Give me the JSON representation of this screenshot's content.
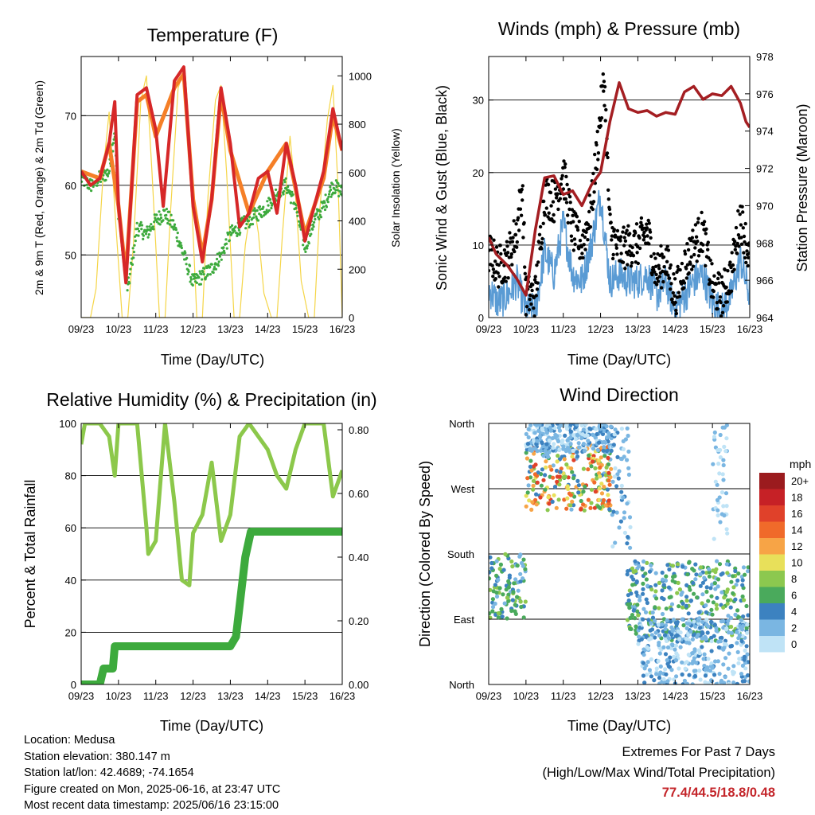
{
  "charts": {
    "temperature": {
      "title": "Temperature (F)",
      "xlabel": "Time (Day/UTC)",
      "ylabel_left": "2m & 9m T (Red, Orange) & 2m Td (Green)",
      "ylabel_right": "Solar Insolation (Yellow)"
    },
    "winds": {
      "title": "Winds (mph) & Pressure (mb)",
      "xlabel": "Time (Day/UTC)",
      "ylabel_left": "Sonic Wind & Gust (Blue, Black)",
      "ylabel_right": "Station Pressure (Maroon)"
    },
    "humidity": {
      "title": "Relative Humidity (%) & Precipitation (in)",
      "xlabel": "Time (Day/UTC)",
      "ylabel_left": "Percent & Total Rainfall"
    },
    "direction": {
      "title": "Wind Direction",
      "xlabel": "Time (Day/UTC)",
      "ylabel_left": "Direction (Colored By Speed)",
      "legend_title": "mph",
      "legend_labels": [
        "20+",
        "18",
        "16",
        "14",
        "12",
        "10",
        "8",
        "6",
        "4",
        "2",
        "0"
      ],
      "legend_colors": [
        "#9b1b1e",
        "#c62126",
        "#e0412a",
        "#f06a2a",
        "#f7a446",
        "#e8e05a",
        "#8cc84f",
        "#4aaa5c",
        "#3c82c0",
        "#7ab6e2",
        "#bfe3f6"
      ]
    }
  },
  "chart_data": [
    {
      "type": "line",
      "title": "Temperature (F)",
      "xlabel": "Time (Day/UTC)",
      "ylabel": "2m & 9m T (Red, Orange) & 2m Td (Green)",
      "y2label": "Solar Insolation (Yellow)",
      "xticks": [
        "09/23",
        "10/23",
        "11/23",
        "12/23",
        "13/23",
        "14/23",
        "15/23",
        "16/23"
      ],
      "xlim": [
        0,
        7
      ],
      "ylim": [
        41,
        78.5
      ],
      "yticks": [
        50,
        60,
        70
      ],
      "y2lim": [
        0,
        1080
      ],
      "y2ticks": [
        0,
        200,
        400,
        600,
        800,
        1000
      ],
      "grid": true,
      "series": [
        {
          "name": "2m T",
          "color": "#d62728",
          "axis": "left",
          "x": [
            0,
            0.25,
            0.5,
            0.75,
            0.9,
            1.0,
            1.2,
            1.5,
            1.75,
            2.0,
            2.2,
            2.5,
            2.75,
            3.0,
            3.25,
            3.5,
            3.75,
            4.0,
            4.25,
            4.5,
            4.75,
            5.0,
            5.25,
            5.5,
            5.75,
            6.0,
            6.25,
            6.5,
            6.75,
            7.0
          ],
          "y": [
            62,
            60,
            61,
            66,
            72,
            57,
            46,
            73,
            74,
            68,
            57,
            75,
            77,
            57,
            49,
            58,
            74,
            66,
            54,
            56,
            61,
            62,
            56,
            66,
            60,
            52,
            57,
            62,
            71,
            65
          ]
        },
        {
          "name": "9m T",
          "color": "#f57f27",
          "axis": "left",
          "x": [
            0,
            0.5,
            0.75,
            1.0,
            1.2,
            1.5,
            1.75,
            2.0,
            2.5,
            2.75,
            3.0,
            3.25,
            3.5,
            3.75,
            4.0,
            4.5,
            5.0,
            5.5,
            6.0,
            6.5,
            6.75,
            7.0
          ],
          "y": [
            62,
            61,
            66,
            57,
            47,
            72,
            73,
            67,
            74,
            76,
            58,
            50,
            58,
            73,
            65,
            56,
            62,
            66,
            53,
            61,
            70,
            65
          ]
        },
        {
          "name": "2m Td",
          "color": "#3daa3d",
          "axis": "left",
          "x": [
            0,
            0.25,
            0.5,
            0.75,
            0.9,
            1.0,
            1.25,
            1.5,
            1.75,
            2.0,
            2.25,
            2.5,
            2.75,
            3.0,
            3.25,
            3.5,
            3.75,
            4.0,
            4.25,
            4.5,
            4.75,
            5.0,
            5.25,
            5.5,
            5.75,
            6.0,
            6.25,
            6.5,
            6.75,
            7.0
          ],
          "y": [
            61,
            60,
            61,
            62,
            68,
            56,
            45,
            54,
            53,
            55,
            56,
            54,
            50,
            46,
            47,
            48,
            50,
            53,
            54,
            55,
            56,
            57,
            59,
            60,
            57,
            51,
            55,
            57,
            60,
            59
          ]
        },
        {
          "name": "Solar Insolation",
          "color": "#f5d547",
          "axis": "right",
          "x": [
            0.0,
            0.25,
            0.4,
            0.6,
            0.75,
            0.9,
            1.1,
            1.25,
            1.4,
            1.6,
            1.75,
            1.9,
            2.1,
            2.25,
            2.4,
            2.6,
            2.75,
            2.9,
            3.1,
            3.25,
            3.4,
            3.6,
            3.75,
            3.9,
            4.1,
            4.25,
            4.4,
            4.6,
            4.75,
            4.9,
            5.1,
            5.25,
            5.4,
            5.6,
            5.75,
            5.9,
            6.1,
            6.25,
            6.4,
            6.6,
            6.75,
            6.9,
            7.0
          ],
          "y": [
            0,
            0,
            120,
            620,
            850,
            450,
            0,
            0,
            300,
            900,
            1000,
            600,
            0,
            0,
            450,
            950,
            1020,
            700,
            0,
            0,
            500,
            900,
            960,
            600,
            0,
            0,
            300,
            500,
            350,
            100,
            0,
            0,
            350,
            750,
            500,
            150,
            0,
            0,
            450,
            820,
            960,
            500,
            0
          ]
        }
      ]
    },
    {
      "type": "line",
      "title": "Winds (mph) & Pressure (mb)",
      "xlabel": "Time (Day/UTC)",
      "ylabel": "Sonic Wind & Gust (Blue, Black)",
      "y2label": "Station Pressure (Maroon)",
      "xticks": [
        "09/23",
        "10/23",
        "11/23",
        "12/23",
        "13/23",
        "14/23",
        "15/23",
        "16/23"
      ],
      "xlim": [
        0,
        7
      ],
      "ylim": [
        0,
        36
      ],
      "yticks": [
        0,
        10,
        20,
        30
      ],
      "y2lim": [
        964,
        978
      ],
      "y2ticks": [
        964,
        966,
        968,
        970,
        972,
        974,
        976,
        978
      ],
      "grid": true,
      "series": [
        {
          "name": "Sonic Wind",
          "color": "#5a9bd4",
          "axis": "left",
          "x": [
            0,
            0.25,
            0.5,
            0.75,
            1.0,
            1.25,
            1.5,
            1.75,
            2.0,
            2.25,
            2.5,
            2.75,
            3.0,
            3.25,
            3.5,
            3.75,
            4.0,
            4.25,
            4.5,
            4.75,
            5.0,
            5.25,
            5.5,
            5.75,
            6.0,
            6.25,
            6.5,
            6.75,
            7.0
          ],
          "y": [
            4,
            2,
            3,
            5,
            1,
            1,
            9,
            6,
            13,
            6,
            5,
            10,
            17,
            5,
            6,
            5,
            5,
            6,
            3,
            5,
            1,
            3,
            5,
            6,
            2,
            1,
            3,
            8,
            3
          ]
        },
        {
          "name": "Gust",
          "color": "#000000",
          "axis": "left",
          "x": [
            0,
            0.25,
            0.5,
            0.75,
            0.9,
            1.0,
            1.25,
            1.5,
            1.75,
            2.0,
            2.25,
            2.5,
            2.75,
            3.0,
            3.1,
            3.25,
            3.5,
            3.75,
            4.0,
            4.25,
            4.5,
            4.75,
            5.0,
            5.25,
            5.5,
            5.75,
            6.0,
            6.25,
            6.5,
            6.75,
            7.0
          ],
          "y": [
            9,
            7,
            8,
            12,
            18,
            3,
            3,
            17,
            16,
            20,
            12,
            10,
            15,
            28,
            33,
            12,
            9,
            10,
            10,
            12,
            6,
            8,
            3,
            7,
            10,
            12,
            4,
            3,
            6,
            14,
            8
          ]
        },
        {
          "name": "Station Pressure",
          "color": "#a41e22",
          "axis": "right",
          "x": [
            0,
            0.2,
            0.5,
            0.75,
            1.0,
            1.25,
            1.5,
            1.75,
            2.0,
            2.25,
            2.5,
            2.75,
            3.0,
            3.25,
            3.5,
            3.75,
            4.0,
            4.25,
            4.5,
            4.75,
            5.0,
            5.25,
            5.5,
            5.75,
            6.0,
            6.25,
            6.5,
            6.75,
            6.9,
            7.0
          ],
          "y": [
            968.3,
            967.4,
            966.8,
            966.1,
            965.2,
            968.7,
            971.5,
            971.6,
            970.6,
            970.8,
            970.0,
            971.1,
            971.8,
            974.5,
            976.6,
            975.2,
            975.0,
            975.1,
            974.8,
            975.0,
            974.9,
            976.1,
            976.4,
            975.7,
            976.0,
            975.9,
            976.4,
            975.5,
            974.5,
            974.2
          ]
        }
      ]
    },
    {
      "type": "line",
      "title": "Relative Humidity (%) & Precipitation (in)",
      "xlabel": "Time (Day/UTC)",
      "ylabel": "Percent & Total Rainfall",
      "xticks": [
        "09/23",
        "10/23",
        "11/23",
        "12/23",
        "13/23",
        "14/23",
        "15/23",
        "16/23"
      ],
      "xlim": [
        0,
        7
      ],
      "ylim": [
        0,
        100
      ],
      "yticks": [
        0,
        20,
        40,
        60,
        80,
        100
      ],
      "y2lim": [
        0,
        0.82
      ],
      "y2ticks": [
        "0.00",
        "0.20",
        "0.40",
        "0.60",
        "0.80"
      ],
      "grid": true,
      "series": [
        {
          "name": "Relative Humidity",
          "color": "#8cc84b",
          "axis": "left",
          "x": [
            0,
            0.1,
            0.5,
            0.75,
            0.9,
            1.0,
            1.25,
            1.5,
            1.75,
            1.8,
            2.0,
            2.25,
            2.5,
            2.7,
            2.9,
            3.0,
            3.25,
            3.5,
            3.75,
            4.0,
            4.25,
            4.5,
            4.75,
            5.0,
            5.25,
            5.5,
            5.75,
            6.0,
            6.25,
            6.5,
            6.75,
            7.0
          ],
          "y": [
            92,
            100,
            100,
            95,
            80,
            100,
            100,
            100,
            60,
            50,
            55,
            100,
            70,
            40,
            38,
            58,
            65,
            85,
            55,
            65,
            95,
            100,
            95,
            90,
            80,
            75,
            90,
            100,
            100,
            100,
            72,
            82
          ]
        },
        {
          "name": "Total Rainfall",
          "color": "#3daa3d",
          "axis": "right",
          "x": [
            0,
            0.5,
            0.6,
            0.85,
            0.9,
            1.5,
            2.0,
            3.0,
            4.0,
            4.15,
            4.3,
            4.4,
            4.55,
            5.0,
            6.0,
            7.0
          ],
          "y": [
            0.0,
            0.0,
            0.05,
            0.05,
            0.12,
            0.12,
            0.12,
            0.12,
            0.12,
            0.15,
            0.3,
            0.4,
            0.48,
            0.48,
            0.48,
            0.48
          ]
        }
      ]
    },
    {
      "type": "scatter",
      "title": "Wind Direction",
      "xlabel": "Time (Day/UTC)",
      "ylabel": "Direction (Colored By Speed)",
      "xticks": [
        "09/23",
        "10/23",
        "11/23",
        "12/23",
        "13/23",
        "14/23",
        "15/23",
        "16/23"
      ],
      "xlim": [
        0,
        7
      ],
      "yticks": [
        "North",
        "East",
        "South",
        "West",
        "North"
      ],
      "ylim": [
        0,
        360
      ],
      "grid": true,
      "colorbar": {
        "title": "mph",
        "labels": [
          "20+",
          "18",
          "16",
          "14",
          "12",
          "10",
          "8",
          "6",
          "4",
          "2",
          "0"
        ]
      },
      "clusters": [
        {
          "x": [
            0.0,
            1.0
          ],
          "dir": [
            90,
            180
          ],
          "speed": [
            2,
            8
          ]
        },
        {
          "x": [
            1.0,
            3.3
          ],
          "dir": [
            240,
            330
          ],
          "speed": [
            2,
            16
          ]
        },
        {
          "x": [
            1.0,
            3.3
          ],
          "dir": [
            320,
            360
          ],
          "speed": [
            0,
            4
          ]
        },
        {
          "x": [
            3.3,
            3.8
          ],
          "dir": [
            180,
            360
          ],
          "speed": [
            0,
            4
          ]
        },
        {
          "x": [
            3.7,
            7.0
          ],
          "dir": [
            60,
            170
          ],
          "speed": [
            2,
            8
          ]
        },
        {
          "x": [
            4.0,
            7.0
          ],
          "dir": [
            0,
            90
          ],
          "speed": [
            0,
            4
          ]
        },
        {
          "x": [
            6.0,
            6.4
          ],
          "dir": [
            200,
            360
          ],
          "speed": [
            0,
            2
          ]
        }
      ]
    }
  ],
  "info": {
    "location": "Location: Medusa",
    "elevation": "Station elevation: 380.147 m",
    "latlon": "Station lat/lon: 42.4689; -74.1654",
    "created": "Figure created on Mon, 2025-06-16, at 23:47 UTC",
    "recent": "Most recent data timestamp: 2025/06/16 23:15:00"
  },
  "extremes": {
    "title": "Extremes For Past 7 Days",
    "subtitle": "(High/Low/Max Wind/Total Precipitation)",
    "values": "77.4/44.5/18.8/0.48"
  }
}
